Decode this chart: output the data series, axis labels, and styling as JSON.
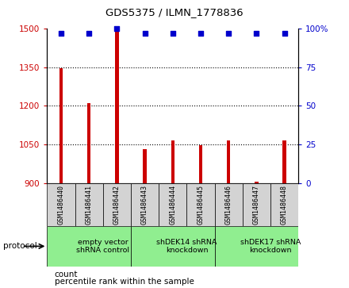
{
  "title": "GDS5375 / ILMN_1778836",
  "samples": [
    "GSM1486440",
    "GSM1486441",
    "GSM1486442",
    "GSM1486443",
    "GSM1486444",
    "GSM1486445",
    "GSM1486446",
    "GSM1486447",
    "GSM1486448"
  ],
  "counts": [
    1345,
    1210,
    1498,
    1030,
    1065,
    1048,
    1065,
    905,
    1065
  ],
  "percentiles": [
    97,
    97,
    100,
    97,
    97,
    97,
    97,
    97,
    97
  ],
  "ylim_left": [
    900,
    1500
  ],
  "ylim_right": [
    0,
    100
  ],
  "yticks_left": [
    900,
    1050,
    1200,
    1350,
    1500
  ],
  "yticks_right": [
    0,
    25,
    50,
    75,
    100
  ],
  "groups": [
    {
      "label": "empty vector\nshRNA control",
      "start": 0,
      "end": 3
    },
    {
      "label": "shDEK14 shRNA\nknockdown",
      "start": 3,
      "end": 6
    },
    {
      "label": "shDEK17 shRNA\nknockdown",
      "start": 6,
      "end": 9
    }
  ],
  "bar_color": "#cc0000",
  "dot_color": "#0000cc",
  "group_bg_color": "#90ee90",
  "sample_bg_color": "#d3d3d3",
  "protocol_label": "protocol",
  "legend_count_label": "count",
  "legend_percentile_label": "percentile rank within the sample",
  "bar_width": 0.12,
  "dot_size": 16
}
